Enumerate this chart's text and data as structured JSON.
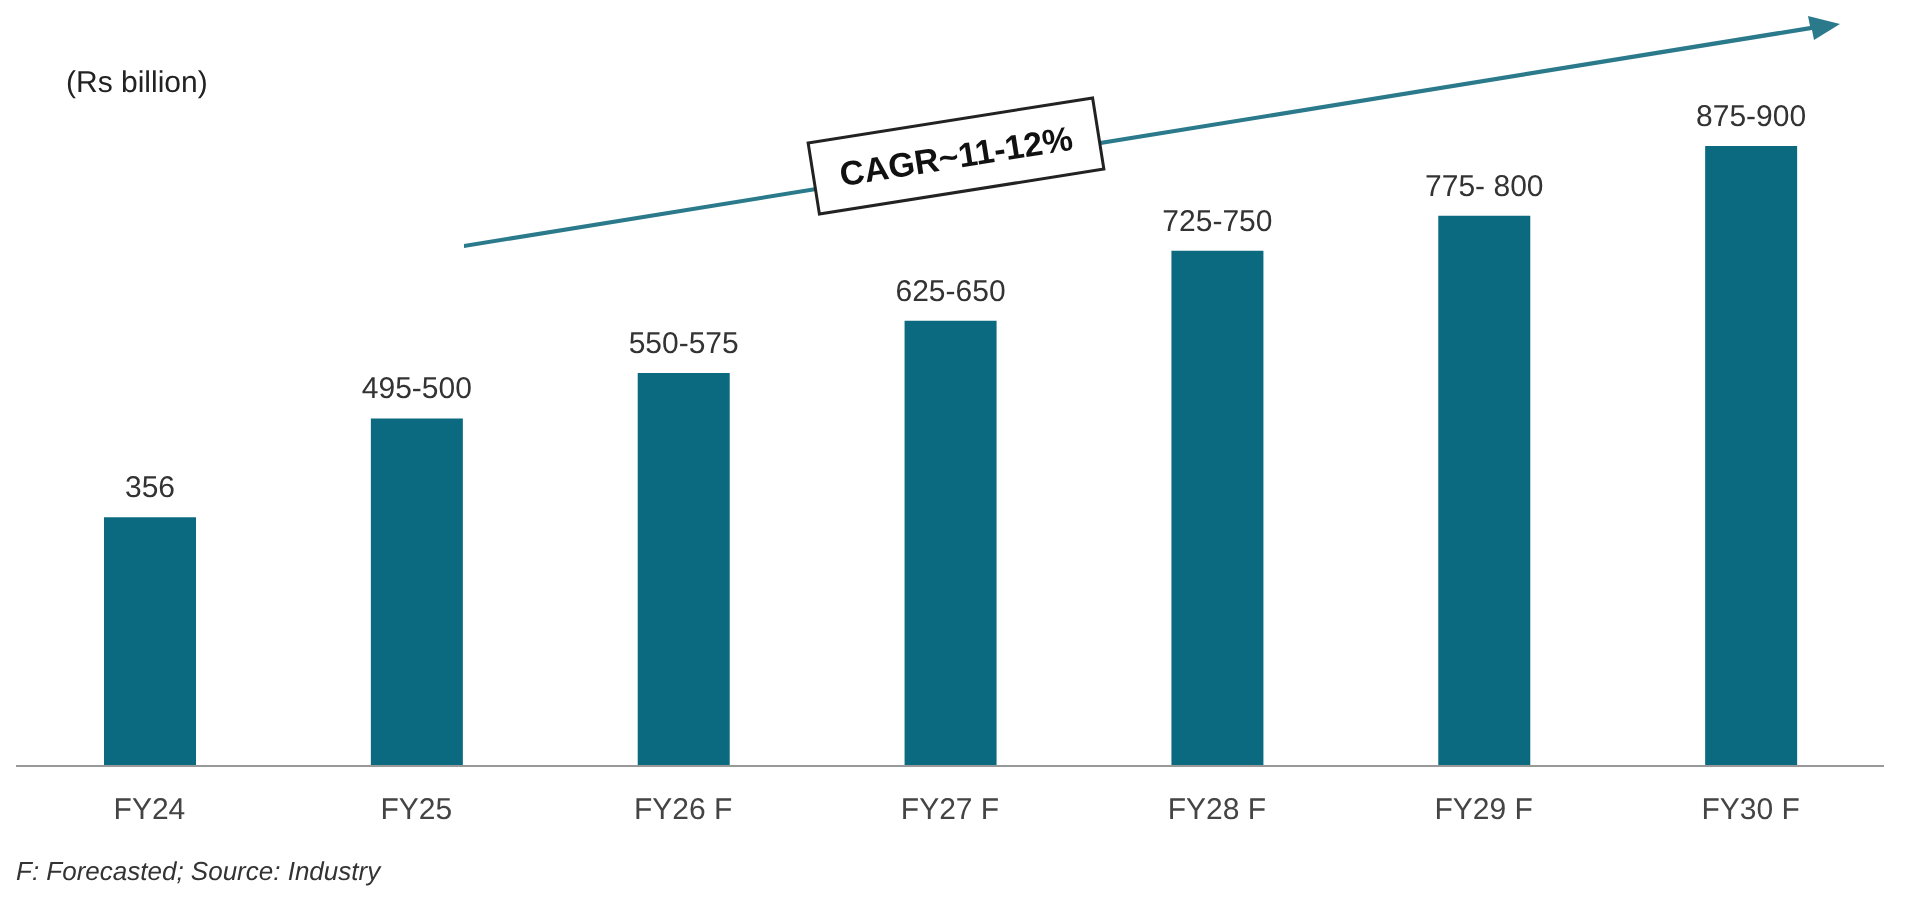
{
  "chart_data": {
    "type": "bar",
    "ylabel": "(Rs billion)",
    "categories": [
      "FY24",
      "FY25",
      "FY26 F",
      "FY27 F",
      "FY28 F",
      "FY29 F",
      "FY30 F"
    ],
    "values": [
      356,
      497.5,
      562.5,
      637.5,
      737.5,
      787.5,
      887.5
    ],
    "value_labels": [
      "356",
      "495-500",
      "550-575",
      "625-650",
      "725-750",
      "775- 800",
      "875-900"
    ],
    "color": "#0b6a80",
    "annotations": [
      "CAGR~11-12%",
      "F: Forecasted; Source: Industry"
    ]
  }
}
